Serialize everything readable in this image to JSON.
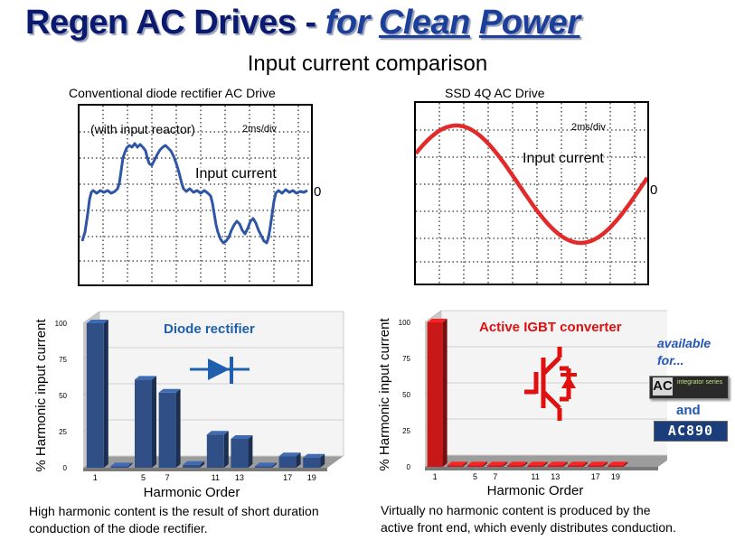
{
  "title": {
    "part1": "Regen AC Drives - ",
    "for": "for ",
    "clean": "Clean",
    "space": " ",
    "power": "Power"
  },
  "subtitle": "Input current comparison",
  "left": {
    "heading": "Conventional diode rectifier AC Drive",
    "scope": {
      "note": "(with input reactor)",
      "timebase": "2ms/div",
      "trace_label": "Input current",
      "zero": "0",
      "trace_color": "#2f56a6"
    },
    "chart": {
      "label": "Diode rectifier",
      "label_color": "#1e5fae"
    },
    "caption_line1": "High harmonic content is the result of short duration",
    "caption_line2": "conduction of the diode rectifier."
  },
  "right": {
    "heading": "SSD 4Q AC Drive",
    "scope": {
      "timebase": "2ms/div",
      "trace_label": "Input current",
      "zero": "0",
      "trace_color": "#e32a2a"
    },
    "chart": {
      "label": "Active IGBT converter",
      "label_color": "#e01010"
    },
    "available": "available",
    "for": "for...",
    "and": "and",
    "logo1": {
      "big": "AC",
      "small": "integrator series"
    },
    "logo2": {
      "text": "AC890"
    },
    "caption_line1": "Virtually no harmonic content is produced by the",
    "caption_line2": "active front end, which evenly distributes conduction."
  },
  "chart_data": [
    {
      "type": "bar",
      "title": "Diode rectifier",
      "xlabel": "Harmonic Order",
      "ylabel": "% Harmonic input current",
      "categories": [
        "1",
        "3",
        "5",
        "7",
        "9",
        "11",
        "13",
        "15",
        "17",
        "19"
      ],
      "tick_labels": [
        "1",
        "",
        "5",
        "7",
        "",
        "11",
        "13",
        "",
        "17",
        "19"
      ],
      "values": [
        100,
        1,
        61,
        52,
        2,
        23,
        20,
        1,
        8,
        7
      ],
      "yticks": [
        "0",
        "25",
        "50",
        "75",
        "100"
      ],
      "ylim": [
        0,
        100
      ],
      "grid": true,
      "color": "#2f4f86"
    },
    {
      "type": "bar",
      "title": "Active IGBT converter",
      "xlabel": "Harmonic Order",
      "ylabel": "% Harmonic input current",
      "categories": [
        "1",
        "3",
        "5",
        "7",
        "9",
        "11",
        "13",
        "15",
        "17",
        "19"
      ],
      "tick_labels": [
        "1",
        "",
        "5",
        "7",
        "",
        "11",
        "13",
        "",
        "17",
        "19"
      ],
      "values": [
        100,
        1,
        1,
        1,
        1,
        1,
        1,
        1,
        1,
        1
      ],
      "yticks": [
        "0",
        "25",
        "50",
        "75",
        "100"
      ],
      "ylim": [
        0,
        100
      ],
      "grid": true,
      "color": "#c81818"
    }
  ]
}
